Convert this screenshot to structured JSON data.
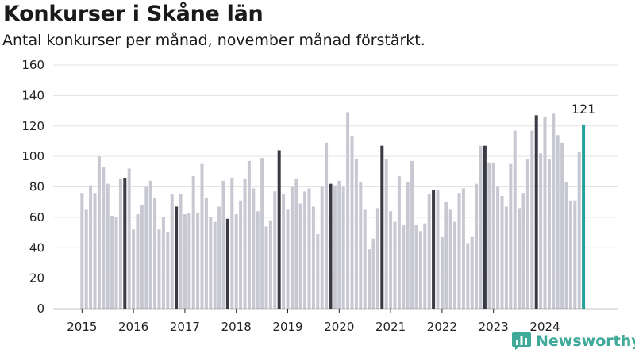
{
  "header": {
    "title": "Konkurser i Skåne län",
    "subtitle": "Antal konkurser per månad, november månad förstärkt."
  },
  "brand": {
    "name": "Newsworthy",
    "color": "#3fa99a",
    "icon": "bar-chart-logo-icon"
  },
  "chart_data": {
    "type": "bar",
    "title": "Konkurser i Skåne län",
    "subtitle": "Antal konkurser per månad, november månad förstärkt.",
    "start": "2015-01",
    "x_tick_labels": [
      "2015",
      "2016",
      "2017",
      "2018",
      "2019",
      "2020",
      "2021",
      "2022",
      "2023",
      "2024"
    ],
    "ylim": [
      0,
      160
    ],
    "y_ticks": [
      0,
      20,
      40,
      60,
      80,
      100,
      120,
      140,
      160
    ],
    "grid": true,
    "colors": {
      "regular": "#c8c8d2",
      "november": "#3a3a45",
      "latest": "#22a39a"
    },
    "values": [
      76,
      65,
      81,
      76,
      100,
      93,
      82,
      61,
      60,
      85,
      86,
      92,
      52,
      62,
      68,
      80,
      84,
      73,
      52,
      60,
      50,
      75,
      67,
      75,
      62,
      63,
      87,
      63,
      95,
      73,
      60,
      57,
      67,
      84,
      59,
      86,
      62,
      71,
      85,
      97,
      79,
      64,
      99,
      54,
      58,
      77,
      104,
      75,
      65,
      80,
      85,
      69,
      77,
      79,
      67,
      49,
      80,
      109,
      82,
      81,
      84,
      80,
      129,
      113,
      98,
      83,
      65,
      39,
      46,
      66,
      107,
      98,
      64,
      57,
      87,
      55,
      83,
      97,
      55,
      51,
      56,
      75,
      78,
      78,
      47,
      70,
      65,
      57,
      76,
      79,
      43,
      47,
      82,
      107,
      107,
      96,
      96,
      80,
      74,
      67,
      95,
      117,
      66,
      76,
      98,
      117,
      127,
      102,
      126,
      98,
      128,
      114,
      109,
      83,
      71,
      71,
      103,
      121
    ],
    "highlight_month": 11,
    "latest_label": "121"
  }
}
